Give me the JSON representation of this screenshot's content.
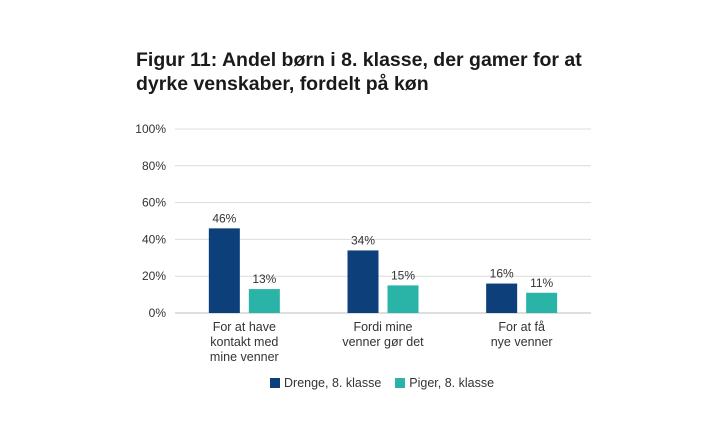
{
  "chart_data": {
    "type": "bar",
    "title_line1": "Figur 11: Andel børn i 8. klasse, der gamer for at",
    "title_line2": "dyrke venskaber, fordelt på køn",
    "categories": [
      [
        "For at have",
        "kontakt med",
        "mine venner"
      ],
      [
        "Fordi mine",
        "venner gør det"
      ],
      [
        "For at få",
        "nye venner"
      ]
    ],
    "series": [
      {
        "name": "Drenge, 8. klasse",
        "color": "#0d3f7a",
        "values": [
          46,
          34,
          16
        ],
        "labels": [
          "46%",
          "34%",
          "16%"
        ]
      },
      {
        "name": "Piger, 8. klasse",
        "color": "#2ab3a7",
        "values": [
          13,
          15,
          11
        ],
        "labels": [
          "13%",
          "15%",
          "11%"
        ]
      }
    ],
    "yticks": [
      "0%",
      "20%",
      "40%",
      "60%",
      "80%",
      "100%"
    ],
    "ylim": [
      0,
      100
    ],
    "grid": true,
    "legend_position": "bottom"
  }
}
